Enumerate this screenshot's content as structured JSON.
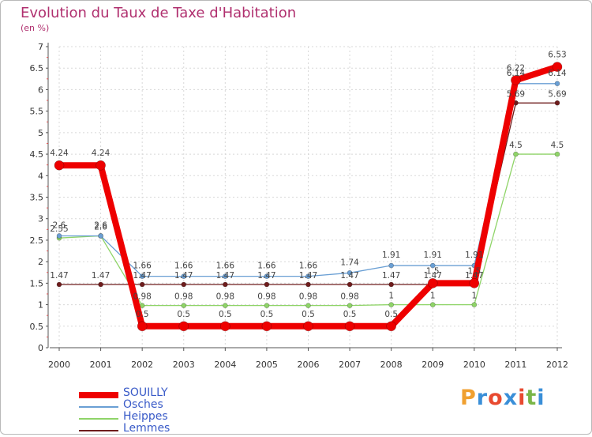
{
  "title": "Evolution du Taux de Taxe d'Habitation",
  "unit_label": "(en %)",
  "logo": {
    "text": "Proxiti",
    "colors": [
      "#f0a030",
      "#3a8fd8",
      "#e84a30",
      "#3a8fd8",
      "#e84a30",
      "#7ab648",
      "#3a8fd8"
    ]
  },
  "chart_data": {
    "type": "line",
    "title": "Evolution du Taux de Taxe d'Habitation",
    "ylabel": "(en %)",
    "xlabel": "",
    "x": [
      "2000",
      "2001",
      "2002",
      "2003",
      "2004",
      "2005",
      "2006",
      "2007",
      "2008",
      "2009",
      "2010",
      "2011",
      "2012"
    ],
    "ylim": [
      0,
      7
    ],
    "yticks": [
      "0",
      "0.5",
      "1",
      "1.5",
      "2",
      "2.5",
      "3",
      "3.5",
      "4",
      "4.5",
      "5",
      "5.5",
      "6",
      "6.5",
      "7"
    ],
    "legend_position": "bottom-left",
    "series": [
      {
        "name": "SOUILLY",
        "color": "#ee0000",
        "values": [
          4.24,
          4.24,
          0.5,
          0.5,
          0.5,
          0.5,
          0.5,
          0.5,
          0.5,
          1.5,
          1.5,
          6.22,
          6.53
        ],
        "labels": [
          "4.24",
          "4.24",
          "0.5",
          "0.5",
          "0.5",
          "0.5",
          "0.5",
          "0.5",
          "0.5",
          "1.5",
          "1.5",
          "6.22",
          "6.53"
        ]
      },
      {
        "name": "Osches",
        "color": "#6a9fd4",
        "values": [
          2.6,
          2.6,
          1.66,
          1.66,
          1.66,
          1.66,
          1.66,
          1.74,
          1.91,
          1.91,
          1.91,
          6.14,
          6.14
        ],
        "labels": [
          "2.6",
          "2.6",
          "1.66",
          "1.66",
          "1.66",
          "1.66",
          "1.66",
          "1.74",
          "1.91",
          "1.91",
          "1.91",
          "6.14",
          "6.14"
        ]
      },
      {
        "name": "Heippes",
        "color": "#8fd468",
        "values": [
          2.55,
          2.6,
          0.98,
          0.98,
          0.98,
          0.98,
          0.98,
          0.98,
          1,
          1,
          1,
          4.5,
          4.5
        ],
        "labels": [
          "2.55",
          "2.6",
          "0.98",
          "0.98",
          "0.98",
          "0.98",
          "0.98",
          "0.98",
          "1",
          "1",
          "1",
          "4.5",
          "4.5"
        ]
      },
      {
        "name": "Lemmes",
        "color": "#6e1c1c",
        "values": [
          1.47,
          1.47,
          1.47,
          1.47,
          1.47,
          1.47,
          1.47,
          1.47,
          1.47,
          1.47,
          1.47,
          5.69,
          5.69
        ],
        "labels": [
          "1.47",
          "1.47",
          "1.47",
          "1.47",
          "1.47",
          "1.47",
          "1.47",
          "1.47",
          "1.47",
          "1.47",
          "1.47",
          "5.69",
          "5.69"
        ]
      }
    ]
  }
}
